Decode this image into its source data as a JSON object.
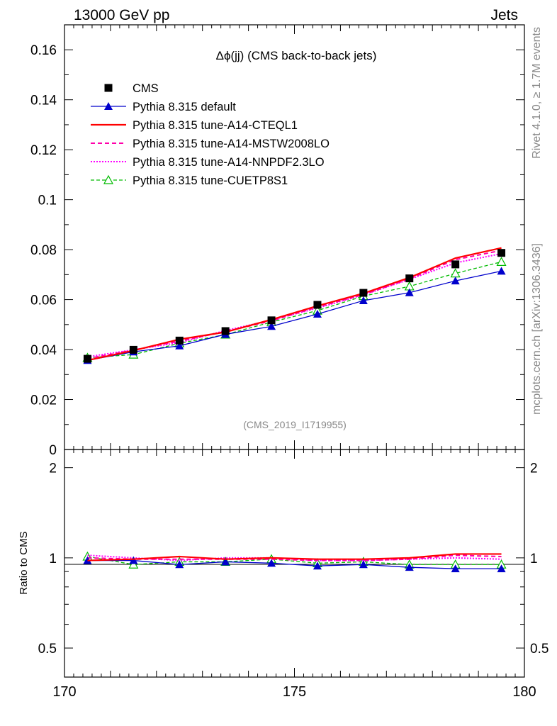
{
  "header": {
    "left": "13000 GeV pp",
    "right": "Jets"
  },
  "side": {
    "rivet": "Rivet 4.1.0, ≥ 1.7M events",
    "mcplots": "mcplots.cern.ch [arXiv:1306.3436]"
  },
  "colors": {
    "cms": "#000000",
    "default": "#0000cc",
    "cteql1": "#ff0000",
    "mstw": "#ff00aa",
    "nnpdf": "#ff00ff",
    "cuetp8s1": "#00bb00"
  },
  "chart_data": {
    "type": "line",
    "title": "Δϕ(jj) (CMS back-to-back jets)",
    "watermark": "(CMS_2019_I1719955)",
    "ratio_ylabel": "Ratio to CMS",
    "xlim": [
      170,
      180
    ],
    "ylim": [
      0,
      0.17
    ],
    "ratio_ylim": [
      0.4,
      2.3
    ],
    "x_ticks": [
      "170",
      "175",
      "180"
    ],
    "y_ticks": [
      "0",
      "0.02",
      "0.04",
      "0.06",
      "0.08",
      "0.1",
      "0.12",
      "0.14",
      "0.16"
    ],
    "ratio_ticks": [
      "0.5",
      "1",
      "2"
    ],
    "x": [
      170.5,
      171.5,
      172.5,
      173.5,
      174.5,
      175.5,
      176.5,
      177.5,
      178.5,
      179.5
    ],
    "series": [
      {
        "key": "cms",
        "name": "CMS",
        "values": [
          0.0363,
          0.0399,
          0.0436,
          0.0474,
          0.0517,
          0.0579,
          0.0627,
          0.0685,
          0.0741,
          0.0787
        ],
        "ratio": [
          1.0,
          1.0,
          1.0,
          1.0,
          1.0,
          1.0,
          1.0,
          1.0,
          1.0,
          1.0
        ]
      },
      {
        "key": "default",
        "name": "Pythia 8.315 default",
        "values": [
          0.0357,
          0.0391,
          0.0415,
          0.0461,
          0.0493,
          0.0542,
          0.0596,
          0.0628,
          0.0675,
          0.0714
        ],
        "ratio": [
          0.98,
          0.98,
          0.95,
          0.97,
          0.96,
          0.94,
          0.95,
          0.93,
          0.92,
          0.92
        ]
      },
      {
        "key": "cteql1",
        "name": "Pythia 8.315 tune-A14-CTEQL1",
        "values": [
          0.0357,
          0.0396,
          0.0441,
          0.047,
          0.052,
          0.0575,
          0.0625,
          0.0688,
          0.0766,
          0.0807
        ],
        "ratio": [
          0.98,
          0.99,
          1.01,
          0.99,
          1.0,
          0.99,
          0.99,
          1.0,
          1.03,
          1.03
        ]
      },
      {
        "key": "mstw",
        "name": "Pythia 8.315 tune-A14-MSTW2008LO",
        "values": [
          0.0364,
          0.0398,
          0.0434,
          0.0472,
          0.0515,
          0.057,
          0.062,
          0.0683,
          0.076,
          0.0797
        ],
        "ratio": [
          1.0,
          0.99,
          0.99,
          0.99,
          0.99,
          0.98,
          0.98,
          0.99,
          1.02,
          1.01
        ]
      },
      {
        "key": "nnpdf",
        "name": "Pythia 8.315 tune-A14-NNPDF2.3LO",
        "values": [
          0.0371,
          0.0399,
          0.0428,
          0.0476,
          0.0518,
          0.0566,
          0.0619,
          0.0681,
          0.0747,
          0.0784
        ],
        "ratio": [
          1.02,
          1.0,
          0.98,
          1.0,
          1.0,
          0.98,
          0.98,
          0.99,
          1.0,
          0.99
        ]
      },
      {
        "key": "cuetp8s1",
        "name": "Pythia 8.315 tune-CUETP8S1",
        "values": [
          0.0367,
          0.038,
          0.0425,
          0.046,
          0.051,
          0.0556,
          0.0614,
          0.0653,
          0.0705,
          0.0751
        ],
        "ratio": [
          1.01,
          0.95,
          0.97,
          0.97,
          0.99,
          0.96,
          0.97,
          0.95,
          0.95,
          0.95
        ]
      }
    ]
  }
}
